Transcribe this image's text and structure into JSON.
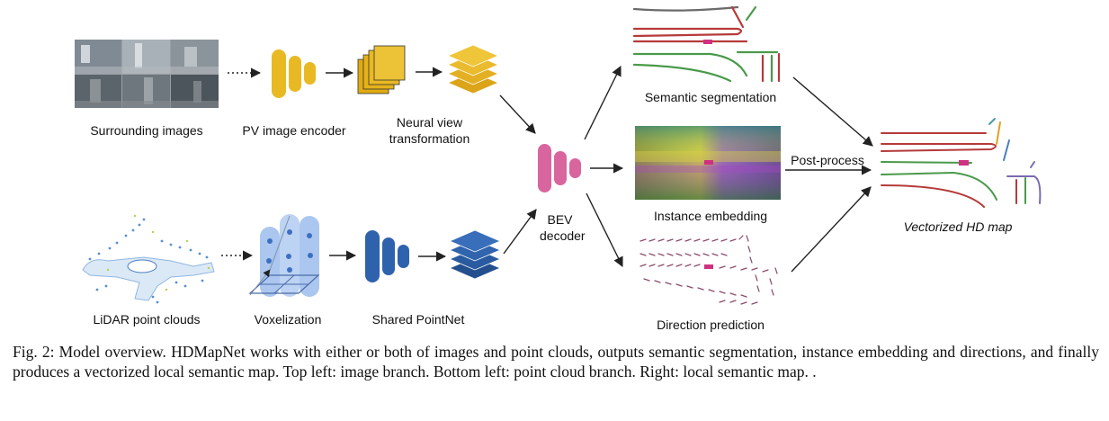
{
  "labels": {
    "surrounding_images": "Surrounding images",
    "pv_image_encoder": "PV image encoder",
    "neural_view_transformation": "Neural view transformation",
    "lidar_point_clouds": "LiDAR point clouds",
    "voxelization": "Voxelization",
    "shared_pointnet": "Shared PointNet",
    "bev_decoder": "BEV decoder",
    "semantic_segmentation": "Semantic segmentation",
    "instance_embedding": "Instance embedding",
    "direction_prediction": "Direction prediction",
    "post_process": "Post-process",
    "vectorized_hd_map": "Vectorized HD map"
  },
  "caption": "Fig. 2: Model overview. HDMapNet works with either or both of images and point clouds, outputs semantic segmentation, instance embedding and directions, and finally produces a vectorized local semantic map. Top left: image branch. Bottom left: point cloud branch. Right: local semantic map. .",
  "colors": {
    "image_branch": "#e8b923",
    "pointnet_branch": "#2f62ad",
    "voxel": "#8fb4ea",
    "bev_decoder": "#d9659e",
    "arrow": "#222222"
  }
}
